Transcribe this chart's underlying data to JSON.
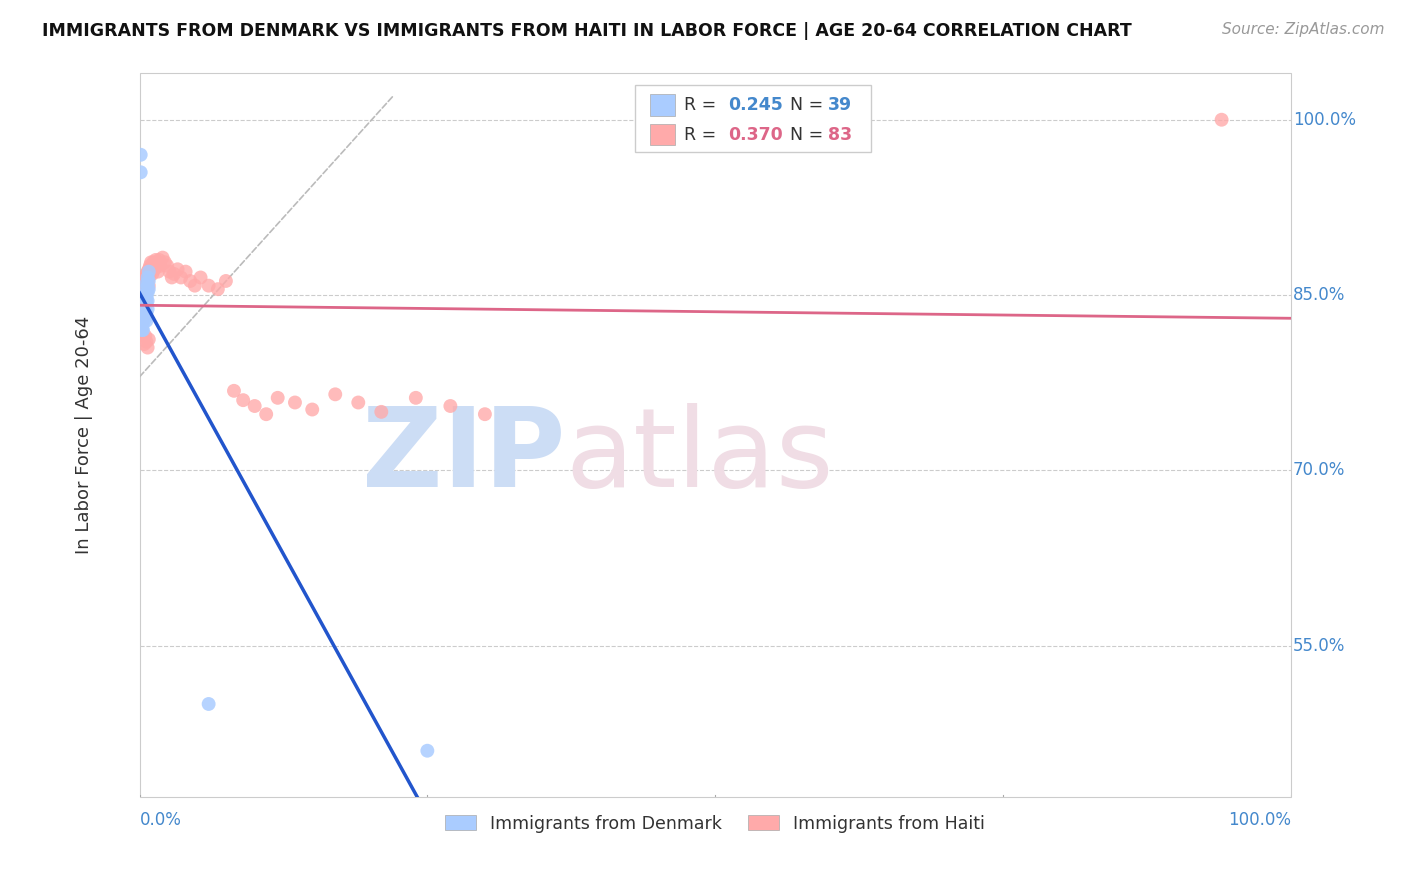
{
  "title": "IMMIGRANTS FROM DENMARK VS IMMIGRANTS FROM HAITI IN LABOR FORCE | AGE 20-64 CORRELATION CHART",
  "source": "Source: ZipAtlas.com",
  "ylabel": "In Labor Force | Age 20-64",
  "axis_label_color": "#4488cc",
  "grid_color": "#cccccc",
  "denmark_color": "#aaccff",
  "haiti_color": "#ffaaaa",
  "denmark_trend_color": "#2255cc",
  "haiti_trend_color": "#dd6688",
  "diag_color": "#bbbbbb",
  "watermark_zip_color": "#ccddf5",
  "watermark_atlas_color": "#f0dde5",
  "ylim_low": 0.42,
  "ylim_high": 1.04,
  "xlim_low": 0.0,
  "xlim_high": 1.0,
  "ytick_vals": [
    0.55,
    0.7,
    0.85,
    1.0
  ],
  "ytick_labels": [
    "55.0%",
    "70.0%",
    "85.0%",
    "100.0%"
  ],
  "denmark_x": [
    0.001,
    0.002,
    0.002,
    0.002,
    0.002,
    0.003,
    0.003,
    0.003,
    0.003,
    0.003,
    0.003,
    0.004,
    0.004,
    0.004,
    0.004,
    0.004,
    0.005,
    0.005,
    0.005,
    0.005,
    0.005,
    0.006,
    0.006,
    0.006,
    0.006,
    0.006,
    0.006,
    0.007,
    0.007,
    0.007,
    0.007,
    0.007,
    0.008,
    0.008,
    0.008,
    0.06,
    0.25,
    0.001,
    0.001
  ],
  "denmark_y": [
    0.845,
    0.835,
    0.84,
    0.825,
    0.82,
    0.845,
    0.84,
    0.835,
    0.83,
    0.825,
    0.82,
    0.85,
    0.845,
    0.84,
    0.835,
    0.83,
    0.85,
    0.845,
    0.84,
    0.835,
    0.83,
    0.86,
    0.855,
    0.848,
    0.843,
    0.835,
    0.828,
    0.865,
    0.858,
    0.852,
    0.845,
    0.838,
    0.87,
    0.862,
    0.855,
    0.5,
    0.46,
    0.97,
    0.955
  ],
  "haiti_x": [
    0.001,
    0.001,
    0.001,
    0.001,
    0.002,
    0.002,
    0.002,
    0.002,
    0.002,
    0.003,
    0.003,
    0.003,
    0.003,
    0.003,
    0.004,
    0.004,
    0.004,
    0.004,
    0.005,
    0.005,
    0.005,
    0.005,
    0.006,
    0.006,
    0.006,
    0.006,
    0.007,
    0.007,
    0.007,
    0.008,
    0.008,
    0.008,
    0.009,
    0.009,
    0.01,
    0.01,
    0.011,
    0.011,
    0.012,
    0.013,
    0.014,
    0.015,
    0.016,
    0.017,
    0.018,
    0.02,
    0.022,
    0.024,
    0.026,
    0.028,
    0.03,
    0.033,
    0.036,
    0.04,
    0.044,
    0.048,
    0.053,
    0.06,
    0.068,
    0.075,
    0.082,
    0.09,
    0.1,
    0.11,
    0.12,
    0.135,
    0.15,
    0.17,
    0.19,
    0.21,
    0.24,
    0.27,
    0.3,
    0.002,
    0.003,
    0.004,
    0.005,
    0.006,
    0.007,
    0.008,
    0.94
  ],
  "haiti_y": [
    0.85,
    0.84,
    0.835,
    0.825,
    0.855,
    0.848,
    0.84,
    0.832,
    0.825,
    0.86,
    0.852,
    0.845,
    0.838,
    0.83,
    0.862,
    0.855,
    0.847,
    0.838,
    0.865,
    0.858,
    0.85,
    0.842,
    0.868,
    0.86,
    0.853,
    0.845,
    0.87,
    0.862,
    0.855,
    0.872,
    0.865,
    0.858,
    0.875,
    0.868,
    0.878,
    0.87,
    0.875,
    0.868,
    0.878,
    0.872,
    0.88,
    0.875,
    0.87,
    0.88,
    0.875,
    0.882,
    0.878,
    0.875,
    0.87,
    0.865,
    0.868,
    0.872,
    0.865,
    0.87,
    0.862,
    0.858,
    0.865,
    0.858,
    0.855,
    0.862,
    0.768,
    0.76,
    0.755,
    0.748,
    0.762,
    0.758,
    0.752,
    0.765,
    0.758,
    0.75,
    0.762,
    0.755,
    0.748,
    0.82,
    0.815,
    0.808,
    0.815,
    0.81,
    0.805,
    0.812,
    1.0
  ]
}
